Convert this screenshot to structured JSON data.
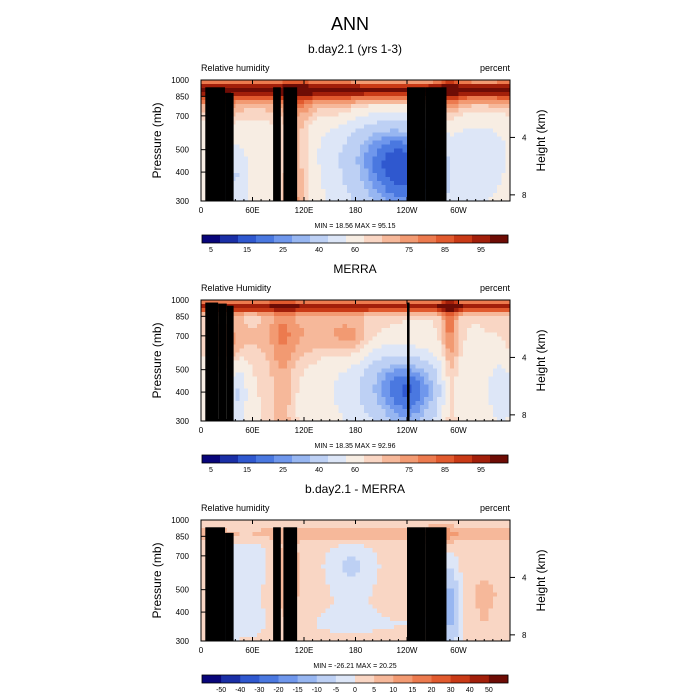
{
  "figure_title": "ANN",
  "chart_data": [
    {
      "type": "heatmap",
      "title": "b.day2.1 (yrs 1-3)",
      "variable": "Relative humidity",
      "units": "percent",
      "ylabel": "Pressure (mb)",
      "ylabel_right": "Height (km)",
      "x_ticks": [
        "0",
        "60E",
        "120E",
        "180",
        "120W",
        "60W"
      ],
      "x_tick_lon": [
        0,
        60,
        120,
        180,
        240,
        300
      ],
      "x_range": [
        0,
        360
      ],
      "y_ticks": [
        "300",
        "400",
        "500",
        "700",
        "850",
        "1000"
      ],
      "y_tick_p": [
        300,
        400,
        500,
        700,
        850,
        1000
      ],
      "y_range": [
        1000,
        300
      ],
      "right_ticks": [
        "8",
        "4"
      ],
      "right_tick_km": [
        8,
        4
      ],
      "stats": "MIN = 18.56  MAX = 95.15",
      "min": 18.56,
      "max": 95.15,
      "colorbar_labels": [
        "5",
        "15",
        "25",
        "40",
        "60",
        "75",
        "85",
        "95"
      ],
      "levels": [
        5,
        10,
        15,
        20,
        25,
        30,
        40,
        50,
        60,
        65,
        70,
        75,
        80,
        85,
        90,
        95
      ],
      "colors": [
        "#08057a",
        "#1a2fa6",
        "#2f58cf",
        "#4a78e0",
        "#6f97ec",
        "#97b6f1",
        "#bdd0f4",
        "#dde6f7",
        "#f7ede3",
        "#f9d6c4",
        "#f6b89a",
        "#f29a72",
        "#ec7a4e",
        "#e15a2e",
        "#c93a16",
        "#a21f0a",
        "#6e0c05"
      ],
      "field": "control"
    },
    {
      "type": "heatmap",
      "title": "MERRA",
      "variable": "Relative Humidity",
      "units": "percent",
      "ylabel": "Pressure (mb)",
      "ylabel_right": "Height (km)",
      "x_ticks": [
        "0",
        "60E",
        "120E",
        "180",
        "120W",
        "60W"
      ],
      "x_tick_lon": [
        0,
        60,
        120,
        180,
        240,
        300
      ],
      "x_range": [
        0,
        360
      ],
      "y_ticks": [
        "300",
        "400",
        "500",
        "700",
        "850",
        "1000"
      ],
      "y_tick_p": [
        300,
        400,
        500,
        700,
        850,
        1000
      ],
      "y_range": [
        1000,
        300
      ],
      "right_ticks": [
        "8",
        "4"
      ],
      "right_tick_km": [
        8,
        4
      ],
      "stats": "MIN = 18.35  MAX = 92.96",
      "min": 18.35,
      "max": 92.96,
      "colorbar_labels": [
        "5",
        "15",
        "25",
        "40",
        "60",
        "75",
        "85",
        "95"
      ],
      "levels": [
        5,
        10,
        15,
        20,
        25,
        30,
        40,
        50,
        60,
        65,
        70,
        75,
        80,
        85,
        90,
        95
      ],
      "colors": [
        "#08057a",
        "#1a2fa6",
        "#2f58cf",
        "#4a78e0",
        "#6f97ec",
        "#97b6f1",
        "#bdd0f4",
        "#dde6f7",
        "#f7ede3",
        "#f9d6c4",
        "#f6b89a",
        "#f29a72",
        "#ec7a4e",
        "#e15a2e",
        "#c93a16",
        "#a21f0a",
        "#6e0c05"
      ],
      "field": "obs"
    },
    {
      "type": "heatmap",
      "title": "b.day2.1 - MERRA",
      "variable": "Relative humidity",
      "units": "percent",
      "ylabel": "Pressure (mb)",
      "ylabel_right": "Height (km)",
      "x_ticks": [
        "0",
        "60E",
        "120E",
        "180",
        "120W",
        "60W"
      ],
      "x_tick_lon": [
        0,
        60,
        120,
        180,
        240,
        300
      ],
      "x_range": [
        0,
        360
      ],
      "y_ticks": [
        "300",
        "400",
        "500",
        "700",
        "850",
        "1000"
      ],
      "y_tick_p": [
        300,
        400,
        500,
        700,
        850,
        1000
      ],
      "y_range": [
        1000,
        300
      ],
      "right_ticks": [
        "8",
        "4"
      ],
      "right_tick_km": [
        8,
        4
      ],
      "stats": "MIN = -26.21  MAX = 20.25",
      "min": -26.21,
      "max": 20.25,
      "colorbar_labels": [
        "-50",
        "-40",
        "-30",
        "-20",
        "-15",
        "-10",
        "-5",
        "0",
        "5",
        "10",
        "15",
        "20",
        "30",
        "40",
        "50"
      ],
      "levels": [
        -50,
        -40,
        -30,
        -20,
        -15,
        -10,
        -5,
        0,
        5,
        10,
        15,
        20,
        30,
        40,
        50
      ],
      "colors": [
        "#08057a",
        "#1a2fa6",
        "#2f58cf",
        "#4a78e0",
        "#6f97ec",
        "#97b6f1",
        "#bdd0f4",
        "#dde6f7",
        "#f9d6c4",
        "#f6b89a",
        "#f29a72",
        "#ec7a4e",
        "#e15a2e",
        "#c93a16",
        "#a21f0a",
        "#6e0c05"
      ],
      "field": "diff"
    }
  ]
}
